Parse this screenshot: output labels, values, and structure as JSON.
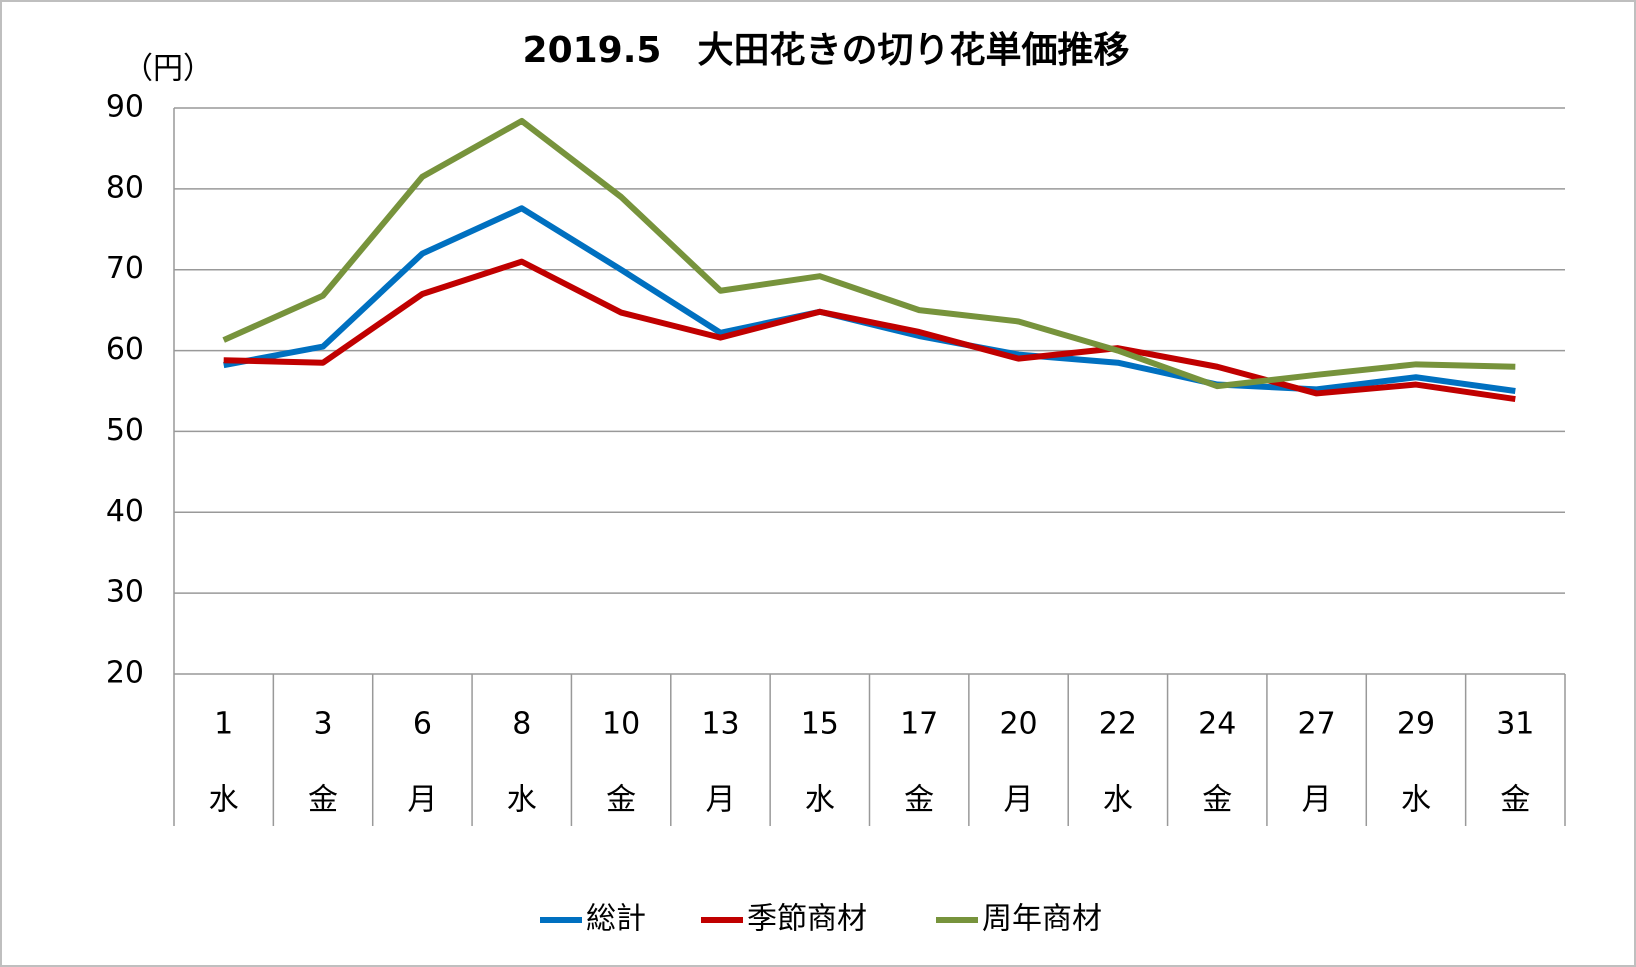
{
  "chart_data": {
    "type": "line",
    "title": "2019.5　大田花きの切り花単価推移",
    "y_unit_label": "（円）",
    "categories": [
      "1",
      "3",
      "6",
      "8",
      "10",
      "13",
      "15",
      "17",
      "20",
      "22",
      "24",
      "27",
      "29",
      "31"
    ],
    "weekdays": [
      "水",
      "金",
      "月",
      "水",
      "金",
      "月",
      "水",
      "金",
      "月",
      "水",
      "金",
      "月",
      "水",
      "金"
    ],
    "series": [
      {
        "name": "総計",
        "color": "#0070c0",
        "values": [
          58.2,
          60.5,
          72,
          77.6,
          70,
          62.2,
          64.8,
          61.8,
          59.5,
          58.5,
          55.8,
          55.2,
          56.7,
          55
        ]
      },
      {
        "name": "季節商材",
        "color": "#c00000",
        "values": [
          58.8,
          58.5,
          67,
          71,
          64.7,
          61.6,
          64.8,
          62.3,
          59,
          60.3,
          58,
          54.7,
          55.8,
          54
        ]
      },
      {
        "name": "周年商材",
        "color": "#77933c",
        "values": [
          61.3,
          66.8,
          81.5,
          88.4,
          79,
          67.4,
          69.2,
          65,
          63.6,
          60,
          55.6,
          57,
          58.3,
          58
        ]
      }
    ],
    "ylim": [
      20,
      90
    ],
    "yticks": [
      20,
      30,
      40,
      50,
      60,
      70,
      80,
      90
    ],
    "grid": true,
    "legend": "bottom"
  }
}
